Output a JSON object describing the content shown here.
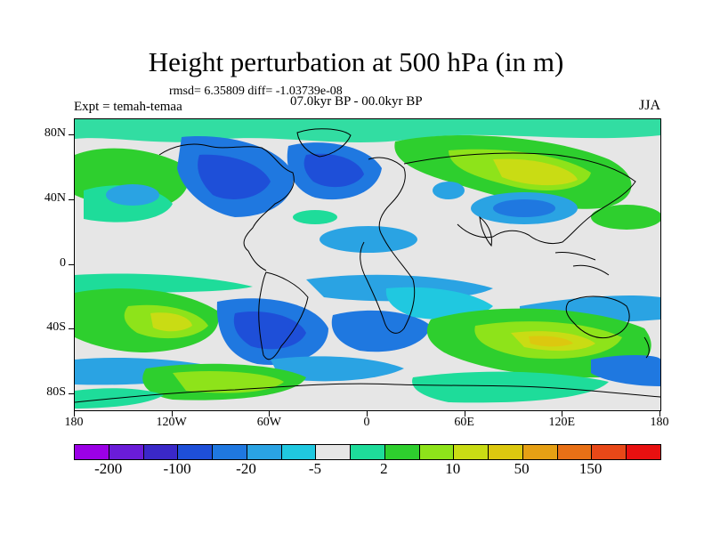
{
  "title": "Height perturbation at 500 hPa (in m)",
  "stats": "rmsd= 6.35809 diff= -1.03739e-08",
  "period": "07.0kyr BP - 00.0kyr BP",
  "experiment": "Expt = temah-temaa",
  "season": "JJA",
  "map": {
    "y_ticks": [
      {
        "label": "80N",
        "lat": 80
      },
      {
        "label": "40N",
        "lat": 40
      },
      {
        "label": "0",
        "lat": 0
      },
      {
        "label": "40S",
        "lat": -40
      },
      {
        "label": "80S",
        "lat": -80
      }
    ],
    "x_ticks": [
      {
        "label": "180",
        "lon": -180
      },
      {
        "label": "120W",
        "lon": -120
      },
      {
        "label": "60W",
        "lon": -60
      },
      {
        "label": "0",
        "lon": 0
      },
      {
        "label": "60E",
        "lon": 60
      },
      {
        "label": "120E",
        "lon": 120
      },
      {
        "label": "180",
        "lon": 180
      }
    ]
  },
  "colorbar": {
    "colors": [
      "#9b00e6",
      "#6a1cd8",
      "#3a28c8",
      "#1e4fd8",
      "#1f78e0",
      "#2aa3e3",
      "#20c8e0",
      "#e6e6e6",
      "#1edc9a",
      "#2ecf2e",
      "#8ee31a",
      "#c9dc14",
      "#dcc80f",
      "#e6a014",
      "#e87016",
      "#e84818",
      "#e81010"
    ],
    "labels": [
      {
        "text": "-200",
        "boundary": 1
      },
      {
        "text": "-100",
        "boundary": 3
      },
      {
        "text": "-20",
        "boundary": 5
      },
      {
        "text": "-5",
        "boundary": 7
      },
      {
        "text": "2",
        "boundary": 9
      },
      {
        "text": "10",
        "boundary": 11
      },
      {
        "text": "50",
        "boundary": 13
      },
      {
        "text": "150",
        "boundary": 15
      }
    ]
  }
}
